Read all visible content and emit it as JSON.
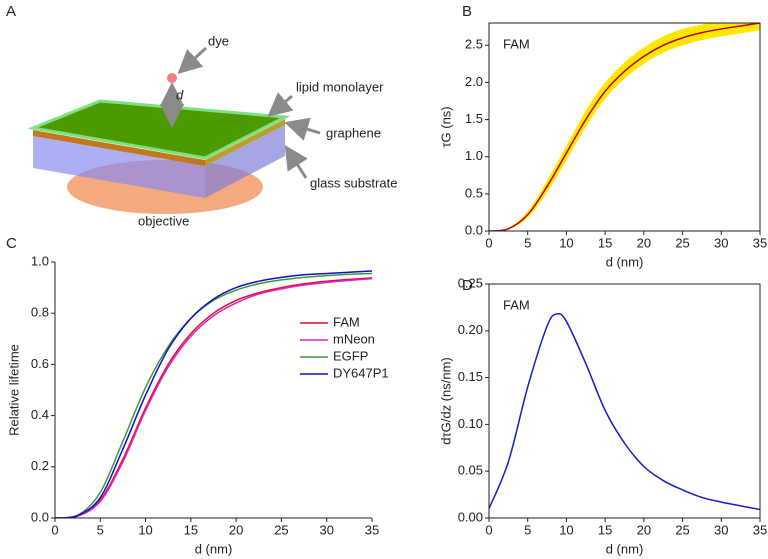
{
  "panels": {
    "a": "A",
    "b": "B",
    "c": "C",
    "d": "D"
  },
  "diagram": {
    "dye": "dye",
    "d": "d",
    "lipid": "lipid monolayer",
    "graphene": "graphene",
    "glass": "glass substrate",
    "objective": "objective"
  },
  "chart_data": [
    {
      "type": "line",
      "annotation": "FAM",
      "xlabel": "d (nm)",
      "ylabel": "τG (ns)",
      "box": true,
      "x": [
        0,
        2.5,
        5,
        7.5,
        10,
        12.5,
        15,
        17.5,
        20,
        22.5,
        25,
        27.5,
        30,
        32.5,
        35
      ],
      "series": [
        {
          "color": "#c00000",
          "values": [
            0,
            0.03,
            0.22,
            0.6,
            1.05,
            1.5,
            1.88,
            2.15,
            2.35,
            2.5,
            2.6,
            2.67,
            2.72,
            2.76,
            2.8
          ]
        }
      ],
      "band": {
        "color": "#ffe800",
        "lower": [
          0,
          0.02,
          0.18,
          0.52,
          0.95,
          1.4,
          1.78,
          2.05,
          2.25,
          2.4,
          2.5,
          2.57,
          2.62,
          2.66,
          2.7
        ],
        "upper": [
          0,
          0.04,
          0.26,
          0.68,
          1.15,
          1.62,
          2.0,
          2.27,
          2.47,
          2.62,
          2.72,
          2.78,
          2.83,
          2.86,
          2.88
        ]
      },
      "xlim": [
        0,
        35
      ],
      "xticks": [
        0,
        5,
        10,
        15,
        20,
        25,
        30,
        35
      ],
      "ylim": [
        0,
        2.8
      ],
      "yticks": [
        {
          "value": 0,
          "label": "0.0"
        },
        {
          "value": 0.5,
          "label": "0.5"
        },
        {
          "value": 1,
          "label": "1.0"
        },
        {
          "value": 1.5,
          "label": "1.5"
        },
        {
          "value": 2,
          "label": "2.0"
        },
        {
          "value": 2.5,
          "label": "2.5"
        }
      ]
    },
    {
      "type": "line",
      "xlabel": "d (nm)",
      "ylabel": "Relative lifetime",
      "box": false,
      "x": [
        0,
        2.5,
        5,
        7.5,
        10,
        12.5,
        15,
        17.5,
        20,
        22.5,
        25,
        27.5,
        30,
        32.5,
        35
      ],
      "series": [
        {
          "name": "FAM",
          "color": "#e0102a",
          "values": [
            0,
            0.008,
            0.07,
            0.23,
            0.43,
            0.6,
            0.72,
            0.8,
            0.85,
            0.88,
            0.9,
            0.915,
            0.925,
            0.932,
            0.938
          ]
        },
        {
          "name": "mNeon",
          "color": "#e020c8",
          "values": [
            0,
            0.007,
            0.065,
            0.22,
            0.42,
            0.59,
            0.71,
            0.79,
            0.84,
            0.875,
            0.895,
            0.91,
            0.92,
            0.928,
            0.935
          ]
        },
        {
          "name": "EGFP",
          "color": "#3a9a3a",
          "values": [
            0,
            0.01,
            0.1,
            0.3,
            0.51,
            0.67,
            0.78,
            0.85,
            0.89,
            0.915,
            0.93,
            0.94,
            0.947,
            0.952,
            0.955
          ]
        },
        {
          "name": "DY647P1",
          "color": "#1010c0",
          "values": [
            0,
            0.01,
            0.08,
            0.27,
            0.48,
            0.66,
            0.78,
            0.855,
            0.9,
            0.925,
            0.94,
            0.95,
            0.955,
            0.96,
            0.965
          ]
        }
      ],
      "xlim": [
        0,
        35
      ],
      "xticks": [
        0,
        5,
        10,
        15,
        20,
        25,
        30,
        35
      ],
      "ylim": [
        0,
        1
      ],
      "yticks": [
        {
          "value": 0,
          "label": "0.0"
        },
        {
          "value": 0.2,
          "label": "0.2"
        },
        {
          "value": 0.4,
          "label": "0.4"
        },
        {
          "value": 0.6,
          "label": "0.6"
        },
        {
          "value": 0.8,
          "label": "0.8"
        },
        {
          "value": 1,
          "label": "1.0"
        }
      ]
    },
    {
      "type": "line",
      "annotation": "FAM",
      "xlabel": "d (nm)",
      "ylabel": "dτG/dz (ns/nm)",
      "box": true,
      "x": [
        0,
        2.5,
        5,
        7.5,
        8.75,
        10,
        12.5,
        15,
        17.5,
        20,
        22.5,
        25,
        27.5,
        30,
        32.5,
        35
      ],
      "series": [
        {
          "color": "#1a1ac8",
          "values": [
            0.01,
            0.06,
            0.14,
            0.205,
            0.218,
            0.21,
            0.165,
            0.115,
            0.08,
            0.055,
            0.04,
            0.03,
            0.022,
            0.017,
            0.013,
            0.009
          ]
        }
      ],
      "xlim": [
        0,
        35
      ],
      "xticks": [
        0,
        5,
        10,
        15,
        20,
        25,
        30,
        35
      ],
      "ylim": [
        0,
        0.25
      ],
      "yticks": [
        {
          "value": 0,
          "label": "0.00"
        },
        {
          "value": 0.05,
          "label": "0.05"
        },
        {
          "value": 0.1,
          "label": "0.10"
        },
        {
          "value": 0.15,
          "label": "0.15"
        },
        {
          "value": 0.2,
          "label": "0.20"
        },
        {
          "value": 0.25,
          "label": "0.25"
        }
      ]
    }
  ]
}
